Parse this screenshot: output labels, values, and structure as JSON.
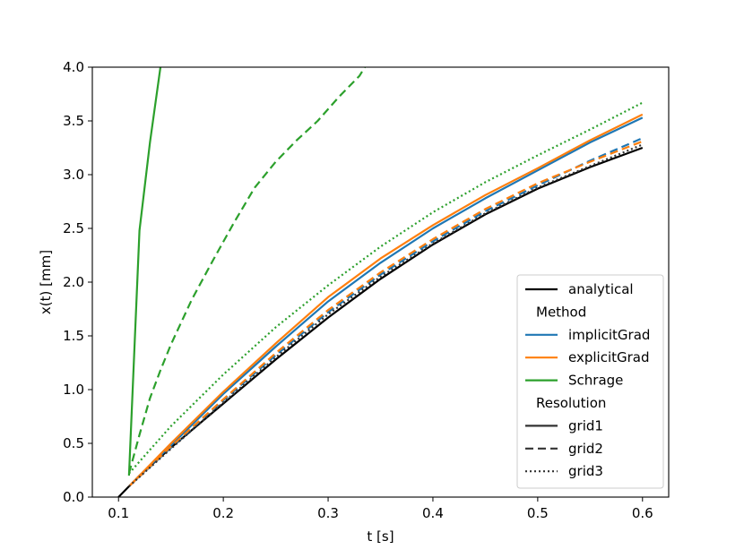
{
  "chart_data": {
    "type": "line",
    "title": "",
    "xlabel": "t [s]",
    "ylabel": "x(t) [mm]",
    "xlim": [
      0.075,
      0.625
    ],
    "ylim": [
      0.0,
      4.0
    ],
    "xticks": [
      0.1,
      0.2,
      0.3,
      0.4,
      0.5,
      0.6
    ],
    "xtick_labels": [
      "0.1",
      "0.2",
      "0.3",
      "0.4",
      "0.5",
      "0.6"
    ],
    "yticks": [
      0.0,
      0.5,
      1.0,
      1.5,
      2.0,
      2.5,
      3.0,
      3.5,
      4.0
    ],
    "ytick_labels": [
      "0.0",
      "0.5",
      "1.0",
      "1.5",
      "2.0",
      "2.5",
      "3.0",
      "3.5",
      "4.0"
    ],
    "grid": false,
    "legend_position": "lower-right",
    "legend": [
      {
        "kind": "entry",
        "label": "analytical",
        "color": "#000000",
        "dash": "solid"
      },
      {
        "kind": "heading",
        "label": "Method"
      },
      {
        "kind": "entry",
        "label": "implicitGrad",
        "color": "#1f77b4",
        "dash": "solid"
      },
      {
        "kind": "entry",
        "label": "explicitGrad",
        "color": "#ff7f0e",
        "dash": "solid"
      },
      {
        "kind": "entry",
        "label": "Schrage",
        "color": "#2ca02c",
        "dash": "solid"
      },
      {
        "kind": "heading",
        "label": "Resolution"
      },
      {
        "kind": "entry",
        "label": "grid1",
        "color": "#333333",
        "dash": "solid"
      },
      {
        "kind": "entry",
        "label": "grid2",
        "color": "#333333",
        "dash": "dashed"
      },
      {
        "kind": "entry",
        "label": "grid3",
        "color": "#333333",
        "dash": "dotted"
      }
    ],
    "series": [
      {
        "name": "analytical",
        "color": "#000000",
        "dash": "solid",
        "x": [
          0.1,
          0.11,
          0.12,
          0.15,
          0.2,
          0.25,
          0.3,
          0.35,
          0.4,
          0.45,
          0.5,
          0.55,
          0.6
        ],
        "y": [
          0.0,
          0.1,
          0.2,
          0.46,
          0.87,
          1.28,
          1.67,
          2.03,
          2.35,
          2.63,
          2.87,
          3.07,
          3.25
        ]
      },
      {
        "name": "implicitGrad grid1",
        "color": "#1f77b4",
        "dash": "solid",
        "x": [
          0.11,
          0.15,
          0.2,
          0.25,
          0.3,
          0.35,
          0.4,
          0.45,
          0.5,
          0.55,
          0.6
        ],
        "y": [
          0.1,
          0.48,
          0.96,
          1.4,
          1.82,
          2.18,
          2.5,
          2.78,
          3.04,
          3.3,
          3.53
        ]
      },
      {
        "name": "implicitGrad grid2",
        "color": "#1f77b4",
        "dash": "dashed",
        "x": [
          0.11,
          0.15,
          0.2,
          0.25,
          0.3,
          0.35,
          0.4,
          0.45,
          0.5,
          0.55,
          0.6
        ],
        "y": [
          0.1,
          0.46,
          0.9,
          1.32,
          1.72,
          2.07,
          2.38,
          2.66,
          2.9,
          3.13,
          3.34
        ]
      },
      {
        "name": "explicitGrad grid1",
        "color": "#ff7f0e",
        "dash": "solid",
        "x": [
          0.11,
          0.15,
          0.2,
          0.25,
          0.3,
          0.35,
          0.4,
          0.45,
          0.5,
          0.55,
          0.6
        ],
        "y": [
          0.1,
          0.5,
          0.98,
          1.43,
          1.86,
          2.22,
          2.53,
          2.81,
          3.06,
          3.32,
          3.56
        ]
      },
      {
        "name": "explicitGrad grid2",
        "color": "#ff7f0e",
        "dash": "dashed",
        "x": [
          0.11,
          0.15,
          0.2,
          0.25,
          0.3,
          0.35,
          0.4,
          0.45,
          0.5,
          0.55,
          0.6
        ],
        "y": [
          0.1,
          0.47,
          0.91,
          1.34,
          1.74,
          2.09,
          2.4,
          2.68,
          2.92,
          3.12,
          3.31
        ]
      },
      {
        "name": "implicitGrad grid3",
        "color": "#333333",
        "dash": "dotted",
        "x": [
          0.11,
          0.15,
          0.2,
          0.25,
          0.3,
          0.35,
          0.4,
          0.45,
          0.5,
          0.55,
          0.6
        ],
        "y": [
          0.1,
          0.45,
          0.88,
          1.3,
          1.7,
          2.05,
          2.36,
          2.64,
          2.88,
          3.08,
          3.28
        ]
      },
      {
        "name": "Schrage grid1",
        "color": "#2ca02c",
        "dash": "solid",
        "x": [
          0.11,
          0.12,
          0.13,
          0.14
        ],
        "y": [
          0.2,
          2.48,
          3.3,
          4.0
        ]
      },
      {
        "name": "Schrage grid2",
        "color": "#2ca02c",
        "dash": "dashed",
        "x": [
          0.11,
          0.12,
          0.13,
          0.14,
          0.15,
          0.17,
          0.19,
          0.21,
          0.23,
          0.25,
          0.27,
          0.29,
          0.31,
          0.33,
          0.335
        ],
        "y": [
          0.22,
          0.58,
          0.92,
          1.18,
          1.42,
          1.84,
          2.2,
          2.55,
          2.88,
          3.12,
          3.32,
          3.5,
          3.72,
          3.92,
          4.0
        ]
      },
      {
        "name": "Schrage grid3",
        "color": "#2ca02c",
        "dash": "dotted",
        "x": [
          0.11,
          0.15,
          0.2,
          0.25,
          0.3,
          0.35,
          0.4,
          0.45,
          0.5,
          0.55,
          0.6
        ],
        "y": [
          0.22,
          0.66,
          1.14,
          1.58,
          1.97,
          2.33,
          2.65,
          2.93,
          3.18,
          3.42,
          3.67
        ]
      }
    ]
  }
}
